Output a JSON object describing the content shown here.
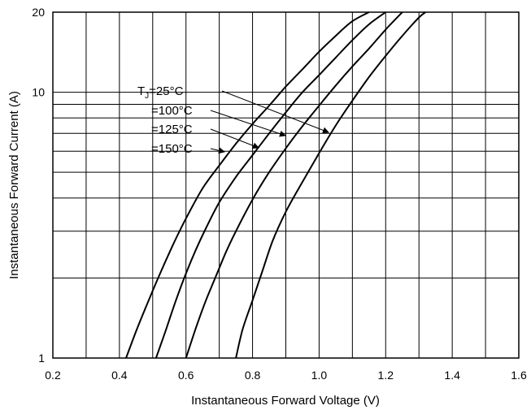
{
  "chart_data": {
    "type": "line",
    "xlabel": "Instantaneous Forward Voltage (V)",
    "ylabel": "Instantaneous Forward Current (A)",
    "xlim": [
      0.2,
      1.6
    ],
    "ylim": [
      1,
      20
    ],
    "y_scale": "log",
    "grid": true,
    "x_ticks": [
      "0.2",
      "0.4",
      "0.6",
      "0.8",
      "1.0",
      "1.2",
      "1.4",
      "1.6"
    ],
    "y_tick_labels": [
      "1",
      "10",
      "20"
    ],
    "series": [
      {
        "name": "TJ=150°C",
        "x": [
          0.42,
          0.45,
          0.48,
          0.52,
          0.56,
          0.6,
          0.65,
          0.7,
          0.75,
          0.8,
          0.85,
          0.9,
          0.95,
          1.0,
          1.05,
          1.1,
          1.15
        ],
        "y": [
          1.0,
          1.26,
          1.56,
          2.05,
          2.65,
          3.35,
          4.35,
          5.3,
          6.4,
          7.6,
          8.9,
          10.5,
          12.2,
          14.2,
          16.3,
          18.5,
          20.0
        ]
      },
      {
        "name": "TJ=125°C",
        "x": [
          0.51,
          0.54,
          0.57,
          0.6,
          0.63,
          0.66,
          0.7,
          0.75,
          0.8,
          0.85,
          0.9,
          0.95,
          1.0,
          1.05,
          1.1,
          1.15,
          1.2
        ],
        "y": [
          1.0,
          1.28,
          1.65,
          2.08,
          2.56,
          3.08,
          3.85,
          4.8,
          5.8,
          7.0,
          8.4,
          10.0,
          11.6,
          13.5,
          15.7,
          18.0,
          20.0
        ]
      },
      {
        "name": "TJ=100°C",
        "x": [
          0.6,
          0.63,
          0.66,
          0.69,
          0.72,
          0.75,
          0.8,
          0.85,
          0.9,
          0.95,
          1.0,
          1.05,
          1.1,
          1.15,
          1.2,
          1.25
        ],
        "y": [
          1.0,
          1.3,
          1.65,
          2.03,
          2.5,
          3.0,
          3.95,
          5.0,
          6.15,
          7.45,
          8.9,
          10.6,
          12.5,
          14.6,
          17.2,
          20.0
        ]
      },
      {
        "name": "TJ=25°C",
        "x": [
          0.75,
          0.77,
          0.8,
          0.83,
          0.86,
          0.9,
          0.95,
          1.0,
          1.05,
          1.1,
          1.15,
          1.2,
          1.25,
          1.3,
          1.32
        ],
        "y": [
          1.0,
          1.28,
          1.65,
          2.13,
          2.75,
          3.55,
          4.6,
          5.9,
          7.5,
          9.3,
          11.4,
          13.7,
          16.3,
          19.1,
          20.0
        ]
      }
    ],
    "annotations": [
      {
        "prefix": "T",
        "sub": "J",
        "suffix": "=25°C",
        "points_to_series": "TJ=25°C"
      },
      {
        "prefix": "",
        "sub": "",
        "suffix": "=100°C",
        "points_to_series": "TJ=100°C"
      },
      {
        "prefix": "",
        "sub": "",
        "suffix": "=125°C",
        "points_to_series": "TJ=125°C"
      },
      {
        "prefix": "",
        "sub": "",
        "suffix": "=150°C",
        "points_to_series": "TJ=150°C"
      }
    ]
  }
}
